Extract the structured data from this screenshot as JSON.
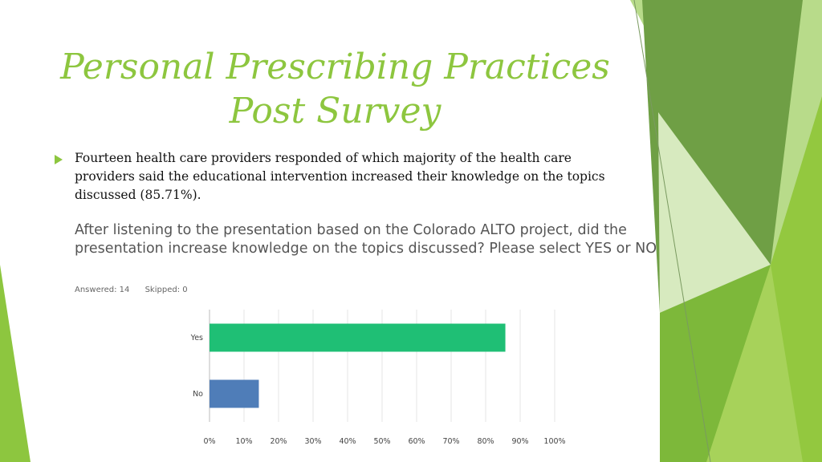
{
  "slide": {
    "title_line1": "Personal Prescribing Practices",
    "title_line2": "Post Survey",
    "bullet_text": "Fourteen health care providers responded of which majority of the health care providers said the educational intervention increased their knowledge on the topics discussed (85.71%).",
    "question": "After listening to the presentation based on the Colorado ALTO project, did the presentation increase knowledge on the topics discussed? Please select YES or NO",
    "answered": "Answered: 14",
    "skipped": "Skipped: 0"
  },
  "colors": {
    "title": "#8dc63f",
    "bar_yes": "#1fbf75",
    "bar_no": "#4f7db8"
  },
  "chart_data": {
    "type": "bar",
    "orientation": "horizontal",
    "categories": [
      "Yes",
      "No"
    ],
    "values": [
      85.71,
      14.29
    ],
    "colors": [
      "#1fbf75",
      "#4f7db8"
    ],
    "xlim": [
      0,
      100
    ],
    "xticks": [
      "0%",
      "10%",
      "20%",
      "30%",
      "40%",
      "50%",
      "60%",
      "70%",
      "80%",
      "90%",
      "100%"
    ],
    "grid": true
  }
}
